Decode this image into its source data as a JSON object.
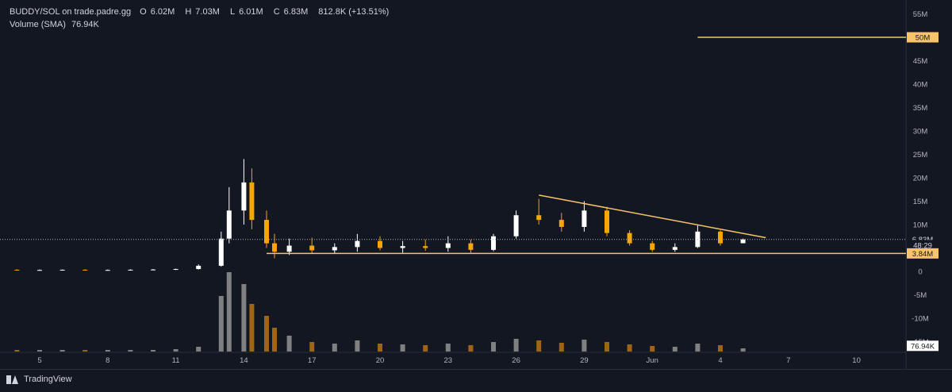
{
  "header": {
    "symbol": "BUDDY/SOL on trade.padre.gg",
    "open_label": "O",
    "open": "6.02M",
    "high_label": "H",
    "high": "7.03M",
    "low_label": "L",
    "low": "6.01M",
    "close_label": "C",
    "close": "6.83M",
    "change": "812.8K (+13.51%)",
    "volume_label": "Volume (SMA)",
    "volume_value": "76.94K"
  },
  "branding": {
    "name": "TradingView"
  },
  "colors": {
    "background": "#131722",
    "up": "#ffffff",
    "down": "#f7a600",
    "line": "#f7c36b",
    "volume_up": "#8c8c8c",
    "volume_down": "#b06d14"
  },
  "chart_data": {
    "type": "candlestick",
    "title": "BUDDY/SOL on trade.padre.gg",
    "price_axis": {
      "labels": [
        "55M",
        "45M",
        "40M",
        "35M",
        "30M",
        "25M",
        "20M",
        "15M",
        "10M",
        "0",
        "-5M",
        "-10M",
        "-15M"
      ],
      "range": [
        -16,
        57
      ]
    },
    "time_axis": {
      "labels": [
        "5",
        "8",
        "11",
        "14",
        "17",
        "20",
        "23",
        "26",
        "29",
        "Jun",
        "4",
        "7",
        "10"
      ]
    },
    "price_tags": [
      {
        "label": "50M",
        "value": 50,
        "role": "horizontal-line"
      },
      {
        "label": "6.83M",
        "value": 6.83,
        "role": "last-price"
      },
      {
        "label": "48:29",
        "value": 5.6,
        "role": "countdown"
      },
      {
        "label": "3.84M",
        "value": 3.84,
        "role": "horizontal-line"
      },
      {
        "label": "76.94K",
        "value": -15.9,
        "role": "volume"
      }
    ],
    "drawings": [
      {
        "type": "horizontal-ray",
        "value": 50,
        "start_date": "Jun 3"
      },
      {
        "type": "horizontal-ray",
        "value": 3.84,
        "start_date": "May 15"
      },
      {
        "type": "trendline",
        "points": [
          [
            "May 27",
            16.3
          ],
          [
            "Jun 6",
            7.2
          ]
        ]
      }
    ],
    "candles": [
      {
        "d": "May 4",
        "o": 0.35,
        "h": 0.45,
        "l": 0.25,
        "c": 0.3
      },
      {
        "d": "May 5",
        "o": 0.3,
        "h": 0.4,
        "l": 0.2,
        "c": 0.3
      },
      {
        "d": "May 6",
        "o": 0.3,
        "h": 0.4,
        "l": 0.2,
        "c": 0.35
      },
      {
        "d": "May 7",
        "o": 0.35,
        "h": 0.45,
        "l": 0.25,
        "c": 0.3
      },
      {
        "d": "May 8",
        "o": 0.3,
        "h": 0.4,
        "l": 0.2,
        "c": 0.3
      },
      {
        "d": "May 9",
        "o": 0.3,
        "h": 0.45,
        "l": 0.2,
        "c": 0.35
      },
      {
        "d": "May 10",
        "o": 0.35,
        "h": 0.5,
        "l": 0.25,
        "c": 0.4
      },
      {
        "d": "May 11",
        "o": 0.4,
        "h": 0.6,
        "l": 0.3,
        "c": 0.5
      },
      {
        "d": "May 12",
        "o": 0.5,
        "h": 1.5,
        "l": 0.4,
        "c": 1.2
      },
      {
        "d": "May 13",
        "o": 1.2,
        "h": 8.5,
        "l": 1.0,
        "c": 7.0
      },
      {
        "d": "May 13",
        "o": 7.0,
        "h": 18.0,
        "l": 6.0,
        "c": 13.0
      },
      {
        "d": "May 14",
        "o": 13.0,
        "h": 24.0,
        "l": 10.0,
        "c": 19.0
      },
      {
        "d": "May 14",
        "o": 19.0,
        "h": 22.0,
        "l": 9.0,
        "c": 11.0
      },
      {
        "d": "May 15",
        "o": 11.0,
        "h": 13.0,
        "l": 5.0,
        "c": 6.0
      },
      {
        "d": "May 15",
        "o": 6.0,
        "h": 8.0,
        "l": 2.8,
        "c": 4.2
      },
      {
        "d": "May 16",
        "o": 4.2,
        "h": 7.0,
        "l": 3.5,
        "c": 5.5
      },
      {
        "d": "May 17",
        "o": 5.5,
        "h": 7.2,
        "l": 3.8,
        "c": 4.5
      },
      {
        "d": "May 18",
        "o": 4.5,
        "h": 6.0,
        "l": 3.9,
        "c": 5.2
      },
      {
        "d": "May 19",
        "o": 5.2,
        "h": 8.0,
        "l": 4.2,
        "c": 6.5
      },
      {
        "d": "May 20",
        "o": 6.5,
        "h": 7.5,
        "l": 4.5,
        "c": 5.0
      },
      {
        "d": "May 21",
        "o": 5.0,
        "h": 6.5,
        "l": 4.0,
        "c": 5.4
      },
      {
        "d": "May 22",
        "o": 5.4,
        "h": 6.8,
        "l": 4.4,
        "c": 5.0
      },
      {
        "d": "May 23",
        "o": 5.0,
        "h": 7.5,
        "l": 4.2,
        "c": 6.0
      },
      {
        "d": "May 24",
        "o": 6.0,
        "h": 6.8,
        "l": 4.0,
        "c": 4.6
      },
      {
        "d": "May 25",
        "o": 4.6,
        "h": 8.0,
        "l": 4.3,
        "c": 7.5
      },
      {
        "d": "May 26",
        "o": 7.5,
        "h": 13.0,
        "l": 7.0,
        "c": 12.0
      },
      {
        "d": "May 27",
        "o": 12.0,
        "h": 15.5,
        "l": 10.0,
        "c": 11.0
      },
      {
        "d": "May 28",
        "o": 11.0,
        "h": 12.5,
        "l": 8.5,
        "c": 9.5
      },
      {
        "d": "May 29",
        "o": 9.5,
        "h": 15.0,
        "l": 8.5,
        "c": 13.0
      },
      {
        "d": "May 30",
        "o": 13.0,
        "h": 13.8,
        "l": 7.5,
        "c": 8.2
      },
      {
        "d": "May 31",
        "o": 8.2,
        "h": 8.8,
        "l": 5.5,
        "c": 6.0
      },
      {
        "d": "Jun 1",
        "o": 6.0,
        "h": 6.5,
        "l": 4.2,
        "c": 4.6
      },
      {
        "d": "Jun 2",
        "o": 4.6,
        "h": 6.0,
        "l": 4.2,
        "c": 5.2
      },
      {
        "d": "Jun 3",
        "o": 5.2,
        "h": 9.8,
        "l": 5.0,
        "c": 8.5
      },
      {
        "d": "Jun 4",
        "o": 8.5,
        "h": 8.8,
        "l": 5.5,
        "c": 6.0
      },
      {
        "d": "Jun 5",
        "o": 6.02,
        "h": 7.03,
        "l": 6.01,
        "c": 6.83
      }
    ]
  }
}
